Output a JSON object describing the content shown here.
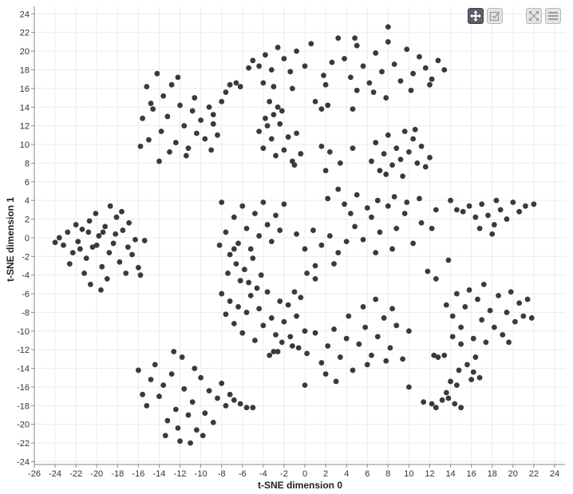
{
  "chart_data": {
    "type": "scatter",
    "title": "",
    "xlabel": "t-SNE dimension 0",
    "ylabel": "t-SNE dimension 1",
    "xlim": [
      -26,
      25
    ],
    "ylim": [
      -24.3,
      24.8
    ],
    "xticks": [
      -26,
      -24,
      -22,
      -20,
      -18,
      -16,
      -14,
      -12,
      -10,
      -8,
      -6,
      -4,
      -2,
      0,
      2,
      4,
      6,
      8,
      10,
      12,
      14,
      16,
      18,
      20,
      22,
      24
    ],
    "yticks": [
      -24,
      -22,
      -20,
      -18,
      -16,
      -14,
      -12,
      -10,
      -8,
      -6,
      -4,
      -2,
      0,
      2,
      4,
      6,
      8,
      10,
      12,
      14,
      16,
      18,
      20,
      22,
      24
    ],
    "grid": true,
    "marker_color": "#3a3a3a",
    "points": [
      [
        -24,
        -0.5
      ],
      [
        -23.6,
        0.0
      ],
      [
        -23.2,
        -0.8
      ],
      [
        -22.8,
        0.6
      ],
      [
        -22.3,
        -1.6
      ],
      [
        -22.0,
        1.4
      ],
      [
        -21.8,
        -0.4
      ],
      [
        -21.4,
        0.9
      ],
      [
        -21.0,
        -2.2
      ],
      [
        -20.7,
        1.8
      ],
      [
        -20.4,
        -1.0
      ],
      [
        -20.1,
        2.6
      ],
      [
        -19.8,
        0.2
      ],
      [
        -19.5,
        -3.1
      ],
      [
        -19.2,
        1.2
      ],
      [
        -19.0,
        -4.4
      ],
      [
        -18.7,
        3.4
      ],
      [
        -18.4,
        -0.6
      ],
      [
        -18.1,
        2.2
      ],
      [
        -17.8,
        -2.6
      ],
      [
        -17.5,
        0.8
      ],
      [
        -17.2,
        -3.8
      ],
      [
        -16.9,
        1.6
      ],
      [
        -16.6,
        -1.8
      ],
      [
        -16.3,
        -0.2
      ],
      [
        -16.0,
        -3.2
      ],
      [
        -15.8,
        -4.0
      ],
      [
        -15.4,
        -0.3
      ],
      [
        -20.6,
        -5.0
      ],
      [
        -19.6,
        -5.6
      ],
      [
        -21.2,
        -3.8
      ],
      [
        -22.6,
        -2.8
      ],
      [
        -20.0,
        -0.8
      ],
      [
        -18.8,
        -1.6
      ],
      [
        -17.0,
        -1.0
      ],
      [
        -19.4,
        0.6
      ],
      [
        -21.6,
        -1.2
      ],
      [
        -18.2,
        0.4
      ],
      [
        -17.6,
        2.8
      ],
      [
        -20.8,
        0.6
      ],
      [
        -15.6,
        12.8
      ],
      [
        -15.2,
        16.2
      ],
      [
        -15.0,
        10.5
      ],
      [
        -14.6,
        13.8
      ],
      [
        -14.2,
        17.6
      ],
      [
        -13.8,
        11.4
      ],
      [
        -13.6,
        15.2
      ],
      [
        -13.2,
        13.0
      ],
      [
        -12.8,
        16.4
      ],
      [
        -12.4,
        10.2
      ],
      [
        -12.0,
        14.2
      ],
      [
        -11.6,
        12.0
      ],
      [
        -11.2,
        9.6
      ],
      [
        -10.8,
        13.6
      ],
      [
        -10.4,
        11.2
      ],
      [
        -10.0,
        12.6
      ],
      [
        -9.6,
        10.6
      ],
      [
        -9.2,
        14.0
      ],
      [
        -8.8,
        12.2
      ],
      [
        -8.4,
        11.0
      ],
      [
        -9.0,
        9.4
      ],
      [
        -11.4,
        8.8
      ],
      [
        -13.0,
        9.2
      ],
      [
        -14.0,
        8.2
      ],
      [
        -8.0,
        14.6
      ],
      [
        -7.6,
        15.6
      ],
      [
        -7.2,
        16.4
      ],
      [
        -6.6,
        16.6
      ],
      [
        -6.2,
        16.2
      ],
      [
        -5.4,
        18.2
      ],
      [
        -4.0,
        16.6
      ],
      [
        -15.8,
        9.8
      ],
      [
        -12.2,
        17.2
      ],
      [
        -10.6,
        15.0
      ],
      [
        -8.8,
        13.2
      ],
      [
        -14.8,
        14.4
      ],
      [
        -16,
        -14.2
      ],
      [
        -15.6,
        -16.8
      ],
      [
        -15.2,
        -18.0
      ],
      [
        -14.8,
        -15.2
      ],
      [
        -14.4,
        -13.6
      ],
      [
        -14.0,
        -17.0
      ],
      [
        -13.6,
        -15.8
      ],
      [
        -13.2,
        -19.6
      ],
      [
        -12.8,
        -14.6
      ],
      [
        -12.4,
        -18.4
      ],
      [
        -12.0,
        -21.8
      ],
      [
        -11.6,
        -16.2
      ],
      [
        -11.2,
        -19.0
      ],
      [
        -10.8,
        -17.6
      ],
      [
        -10.4,
        -20.6
      ],
      [
        -10.0,
        -15.0
      ],
      [
        -9.6,
        -18.8
      ],
      [
        -9.2,
        -16.4
      ],
      [
        -8.8,
        -19.8
      ],
      [
        -8.4,
        -17.2
      ],
      [
        -8.0,
        -15.6
      ],
      [
        -7.6,
        -18.0
      ],
      [
        -7.2,
        -16.8
      ],
      [
        -6.8,
        -17.4
      ],
      [
        -6.2,
        -17.8
      ],
      [
        -5.6,
        -18.2
      ],
      [
        -5.0,
        -18.2
      ],
      [
        -12.6,
        -12.2
      ],
      [
        -11.8,
        -12.8
      ],
      [
        -10.6,
        -14.0
      ],
      [
        -13.4,
        -21.2
      ],
      [
        -11.0,
        -22.0
      ],
      [
        -12.2,
        -20.4
      ],
      [
        -9.8,
        -21.2
      ],
      [
        -8,
        3.8
      ],
      [
        -7.6,
        0.6
      ],
      [
        -7.2,
        -1.8
      ],
      [
        -6.8,
        2.2
      ],
      [
        -6.4,
        -0.6
      ],
      [
        -6.0,
        3.4
      ],
      [
        -5.6,
        1.0
      ],
      [
        -5.2,
        -1.2
      ],
      [
        -4.8,
        2.6
      ],
      [
        -4.4,
        0.2
      ],
      [
        -4.0,
        3.8
      ],
      [
        -3.6,
        1.4
      ],
      [
        -3.2,
        -0.4
      ],
      [
        -2.8,
        2.4
      ],
      [
        -2.4,
        0.8
      ],
      [
        -2.0,
        3.6
      ],
      [
        -7.4,
        -3.8
      ],
      [
        -6.6,
        -2.8
      ],
      [
        -5.8,
        -3.4
      ],
      [
        -5.0,
        -2.2
      ],
      [
        -4.2,
        -4.0
      ],
      [
        -6.2,
        -4.6
      ],
      [
        -8.2,
        -0.8
      ],
      [
        -6.8,
        -1.2
      ],
      [
        -8,
        -6.0
      ],
      [
        -7.6,
        -8.2
      ],
      [
        -7.2,
        -6.8
      ],
      [
        -6.8,
        -9.2
      ],
      [
        -6.4,
        -7.4
      ],
      [
        -6.0,
        -10.2
      ],
      [
        -5.6,
        -8.0
      ],
      [
        -5.2,
        -6.2
      ],
      [
        -4.8,
        -11.0
      ],
      [
        -4.4,
        -7.6
      ],
      [
        -4.0,
        -9.4
      ],
      [
        -3.6,
        -5.8
      ],
      [
        -3.2,
        -8.6
      ],
      [
        -2.8,
        -10.4
      ],
      [
        -2.4,
        -6.8
      ],
      [
        -2.0,
        -9.0
      ],
      [
        -1.6,
        -7.2
      ],
      [
        -1.2,
        -11.6
      ],
      [
        -0.8,
        -8.4
      ],
      [
        -0.4,
        -6.4
      ],
      [
        0.0,
        -10.0
      ],
      [
        -4.6,
        -5.4
      ],
      [
        -3.4,
        -12.6
      ],
      [
        -5.4,
        -4.8
      ],
      [
        -2.6,
        -12.2
      ],
      [
        -1.0,
        -5.8
      ],
      [
        -3,
        -12.2
      ],
      [
        -2.2,
        -11.2
      ],
      [
        -1.4,
        -10.6
      ],
      [
        -0.6,
        -11.8
      ],
      [
        0.2,
        -12.4
      ],
      [
        1.0,
        -10.2
      ],
      [
        1.6,
        -13.4
      ],
      [
        2.2,
        -11.6
      ],
      [
        2.8,
        -9.8
      ],
      [
        3.4,
        -12.8
      ],
      [
        4.0,
        -10.8
      ],
      [
        4.6,
        -14.2
      ],
      [
        5.2,
        -11.4
      ],
      [
        5.8,
        -9.6
      ],
      [
        6.4,
        -12.6
      ],
      [
        7.0,
        -10.6
      ],
      [
        7.6,
        -8.6
      ],
      [
        8.2,
        -11.8
      ],
      [
        8.8,
        -9.4
      ],
      [
        9.4,
        -13.0
      ],
      [
        10.0,
        -10.0
      ],
      [
        4.2,
        -8.4
      ],
      [
        5.6,
        -7.4
      ],
      [
        6.8,
        -6.6
      ],
      [
        3.0,
        -15.4
      ],
      [
        2.0,
        -14.6
      ],
      [
        0.0,
        -15.8
      ],
      [
        6.0,
        -13.6
      ],
      [
        7.8,
        -13.2
      ],
      [
        8.4,
        -7.6
      ],
      [
        -5,
        19.0
      ],
      [
        -4.4,
        18.4
      ],
      [
        -3.8,
        19.6
      ],
      [
        -3.2,
        18.0
      ],
      [
        -2.6,
        20.4
      ],
      [
        -2.0,
        19.2
      ],
      [
        -1.4,
        17.8
      ],
      [
        -0.8,
        20.0
      ],
      [
        0.6,
        20.8
      ],
      [
        1.8,
        17.4
      ],
      [
        2.6,
        18.8
      ],
      [
        3.2,
        21.4
      ],
      [
        3.8,
        19.2
      ],
      [
        4.4,
        17.2
      ],
      [
        5.0,
        20.6
      ],
      [
        5.6,
        18.4
      ],
      [
        6.2,
        16.6
      ],
      [
        6.8,
        19.8
      ],
      [
        7.4,
        17.8
      ],
      [
        8.0,
        21.0
      ],
      [
        8.6,
        18.6
      ],
      [
        9.2,
        16.8
      ],
      [
        9.8,
        20.2
      ],
      [
        10.4,
        17.6
      ],
      [
        11.0,
        19.4
      ],
      [
        11.6,
        18.2
      ],
      [
        12.2,
        17.0
      ],
      [
        12.8,
        19.0
      ],
      [
        13.4,
        18.0
      ],
      [
        8.0,
        22.6
      ],
      [
        4.8,
        21.4
      ],
      [
        6.6,
        15.6
      ],
      [
        2.0,
        16.4
      ],
      [
        0.0,
        18.4
      ],
      [
        -3.0,
        16.2
      ],
      [
        -1.2,
        16.0
      ],
      [
        5.0,
        15.8
      ],
      [
        7.8,
        15.0
      ],
      [
        10.2,
        15.8
      ],
      [
        12.0,
        16.4
      ],
      [
        -3.4,
        14.6
      ],
      [
        -3.0,
        13.2
      ],
      [
        -2.6,
        14.0
      ],
      [
        -2.2,
        13.6
      ],
      [
        -3.8,
        12.8
      ],
      [
        1.0,
        14.6
      ],
      [
        1.6,
        13.8
      ],
      [
        2.2,
        14.2
      ],
      [
        4.6,
        13.8
      ],
      [
        -4.4,
        11.4
      ],
      [
        -4.0,
        9.6
      ],
      [
        -3.2,
        10.6
      ],
      [
        -2.8,
        8.8
      ],
      [
        -2.4,
        12.2
      ],
      [
        -2.0,
        9.4
      ],
      [
        -1.6,
        10.8
      ],
      [
        -1.2,
        8.2
      ],
      [
        -0.8,
        11.2
      ],
      [
        -0.4,
        9.0
      ],
      [
        -3.6,
        12.0
      ],
      [
        -1.0,
        7.8
      ],
      [
        1.6,
        9.8
      ],
      [
        2.4,
        9.2
      ],
      [
        3.4,
        8.0
      ],
      [
        2.0,
        7.2
      ],
      [
        3.2,
        5.2
      ],
      [
        2.2,
        4.2
      ],
      [
        4.6,
        9.6
      ],
      [
        6.4,
        8.2
      ],
      [
        6.8,
        10.2
      ],
      [
        7.2,
        7.2
      ],
      [
        7.6,
        9.0
      ],
      [
        8.0,
        11.0
      ],
      [
        8.4,
        7.8
      ],
      [
        8.8,
        9.6
      ],
      [
        9.2,
        8.4
      ],
      [
        9.6,
        11.4
      ],
      [
        10.0,
        9.2
      ],
      [
        10.4,
        10.6
      ],
      [
        10.8,
        8.0
      ],
      [
        11.2,
        9.8
      ],
      [
        11.6,
        7.6
      ],
      [
        12.0,
        8.6
      ],
      [
        9.4,
        6.6
      ],
      [
        10.6,
        11.6
      ],
      [
        7.8,
        6.8
      ],
      [
        -0.8,
        0.4
      ],
      [
        0.0,
        -1.2
      ],
      [
        0.8,
        0.8
      ],
      [
        1.6,
        -0.8
      ],
      [
        2.4,
        0.2
      ],
      [
        3.2,
        -1.6
      ],
      [
        4.0,
        -0.4
      ],
      [
        4.8,
        1.2
      ],
      [
        5.6,
        -0.2
      ],
      [
        6.4,
        2.2
      ],
      [
        7.2,
        0.6
      ],
      [
        8.0,
        3.4
      ],
      [
        8.8,
        1.0
      ],
      [
        9.6,
        2.6
      ],
      [
        10.4,
        -0.6
      ],
      [
        11.2,
        1.6
      ],
      [
        5.0,
        4.6
      ],
      [
        6.0,
        3.2
      ],
      [
        7.0,
        4.0
      ],
      [
        8.6,
        4.4
      ],
      [
        9.8,
        3.8
      ],
      [
        11.0,
        4.2
      ],
      [
        12.6,
        3.0
      ],
      [
        12.2,
        1.0
      ],
      [
        3.8,
        3.6
      ],
      [
        4.4,
        2.6
      ],
      [
        2.8,
        -2.8
      ],
      [
        1.0,
        -3.0
      ],
      [
        6.8,
        -1.6
      ],
      [
        8.4,
        -1.2
      ],
      [
        11.8,
        -3.6
      ],
      [
        12.6,
        -4.4
      ],
      [
        1.0,
        -4.4
      ],
      [
        0.2,
        -3.8
      ],
      [
        14,
        4.0
      ],
      [
        14.6,
        3.0
      ],
      [
        15.2,
        2.8
      ],
      [
        15.8,
        3.4
      ],
      [
        16.4,
        2.2
      ],
      [
        17.0,
        3.6
      ],
      [
        17.6,
        2.4
      ],
      [
        18.2,
        1.4
      ],
      [
        18.8,
        3.0
      ],
      [
        19.4,
        2.0
      ],
      [
        20.0,
        3.8
      ],
      [
        20.6,
        2.8
      ],
      [
        21.2,
        3.4
      ],
      [
        22.0,
        3.6
      ],
      [
        18.4,
        4.0
      ],
      [
        16.8,
        1.0
      ],
      [
        18.0,
        0.4
      ],
      [
        13.8,
        -2.4
      ],
      [
        13.6,
        -7.2
      ],
      [
        14.2,
        -8.4
      ],
      [
        14.6,
        -6.0
      ],
      [
        15.0,
        -9.6
      ],
      [
        15.4,
        -7.4
      ],
      [
        15.8,
        -5.6
      ],
      [
        16.2,
        -10.8
      ],
      [
        16.6,
        -6.6
      ],
      [
        17.0,
        -8.8
      ],
      [
        17.4,
        -11.2
      ],
      [
        17.8,
        -7.8
      ],
      [
        18.2,
        -9.6
      ],
      [
        18.6,
        -6.2
      ],
      [
        19.0,
        -10.4
      ],
      [
        19.4,
        -8.0
      ],
      [
        19.8,
        -5.8
      ],
      [
        20.2,
        -9.0
      ],
      [
        20.6,
        -7.0
      ],
      [
        21.0,
        -8.4
      ],
      [
        21.4,
        -6.6
      ],
      [
        21.8,
        -8.6
      ],
      [
        17.2,
        -5.0
      ],
      [
        16.4,
        -12.8
      ],
      [
        15.0,
        -11.4
      ],
      [
        14.2,
        -10.6
      ],
      [
        13.4,
        -12.6
      ],
      [
        12.8,
        -12.8
      ],
      [
        12.4,
        -12.6
      ],
      [
        14.8,
        -14.2
      ],
      [
        15.6,
        -13.6
      ],
      [
        16.2,
        -14.4
      ],
      [
        14.0,
        -15.4
      ],
      [
        14.6,
        -15.8
      ],
      [
        16.0,
        -15.2
      ],
      [
        16.8,
        -15.0
      ],
      [
        13.6,
        -16.6
      ],
      [
        13.8,
        -17.2
      ],
      [
        14.4,
        -17.8
      ],
      [
        15.0,
        -18.2
      ],
      [
        11.4,
        -17.6
      ],
      [
        12.2,
        -17.8
      ],
      [
        12.6,
        -18.2
      ],
      [
        13.2,
        -17.4
      ],
      [
        10.0,
        -16.0
      ],
      [
        19.6,
        -11.2
      ]
    ]
  },
  "toolbar": {
    "buttons": [
      {
        "icon": "move-icon",
        "active": true
      },
      {
        "icon": "select-icon",
        "active": false
      },
      {
        "icon": "fullscreen-icon",
        "active": false
      },
      {
        "icon": "menu-icon",
        "active": false
      }
    ]
  }
}
